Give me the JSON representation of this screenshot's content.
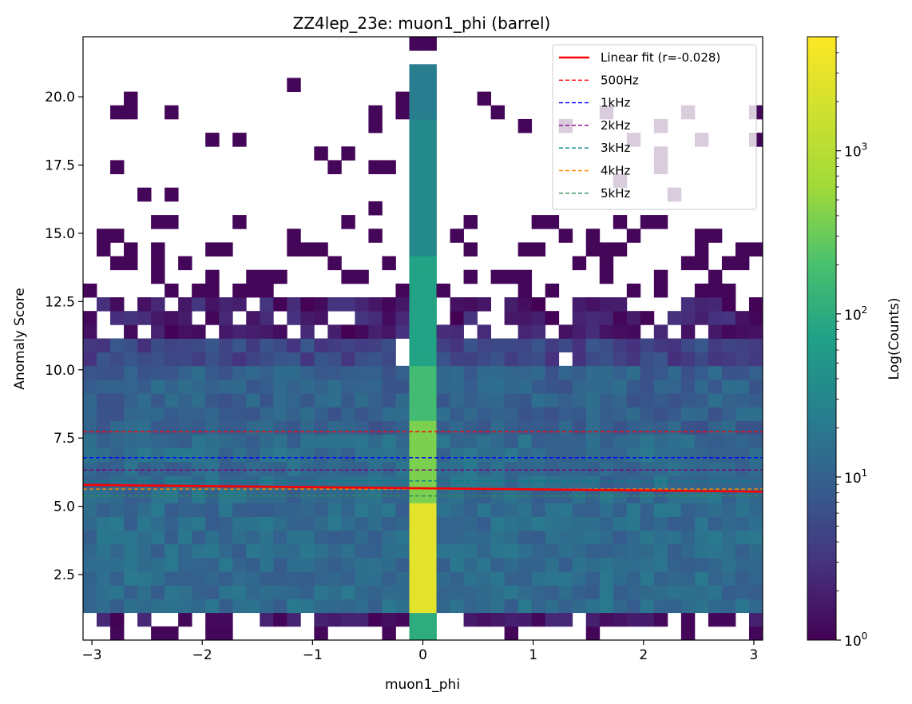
{
  "chart_data": {
    "type": "heatmap",
    "title": "ZZ4lep_23e: muon1_phi (barrel)",
    "xlabel": "muon1_phi",
    "ylabel": "Anomaly Score",
    "xlim": [
      -3.08,
      3.08
    ],
    "ylim": [
      0.1,
      22.2
    ],
    "xticks": [
      {
        "value": -3,
        "label": "−3"
      },
      {
        "value": -2,
        "label": "−2"
      },
      {
        "value": -1,
        "label": "−1"
      },
      {
        "value": 0,
        "label": "0"
      },
      {
        "value": 1,
        "label": "1"
      },
      {
        "value": 2,
        "label": "2"
      },
      {
        "value": 3,
        "label": "3"
      }
    ],
    "yticks": [
      {
        "value": 2.5,
        "label": "2.5"
      },
      {
        "value": 5.0,
        "label": "5.0"
      },
      {
        "value": 7.5,
        "label": "7.5"
      },
      {
        "value": 10.0,
        "label": "10.0"
      },
      {
        "value": 12.5,
        "label": "12.5"
      },
      {
        "value": 15.0,
        "label": "15.0"
      },
      {
        "value": 17.5,
        "label": "17.5"
      },
      {
        "value": 20.0,
        "label": "20.0"
      }
    ],
    "bins": {
      "nx": 50,
      "ny": 44
    },
    "colorbar": {
      "label": "Log(Counts)",
      "scale": "log",
      "range": [
        1,
        5000
      ],
      "ticks": [
        {
          "value": 1,
          "base": "10",
          "exp": "0"
        },
        {
          "value": 10,
          "base": "10",
          "exp": "1"
        },
        {
          "value": 100,
          "base": "10",
          "exp": "2"
        },
        {
          "value": 1000,
          "base": "10",
          "exp": "3"
        }
      ],
      "colormap": "viridis"
    },
    "fit": {
      "label": "Linear fit (r=-0.028)",
      "r": -0.028,
      "slope": -0.04,
      "intercept": 5.66,
      "color": "#ff0000"
    },
    "thresholds": [
      {
        "name": "500Hz",
        "y": 7.73,
        "color": "#ff0000"
      },
      {
        "name": "1kHz",
        "y": 6.78,
        "color": "#0000ff"
      },
      {
        "name": "2kHz",
        "y": 6.33,
        "color": "#800080"
      },
      {
        "name": "3kHz",
        "y": 5.93,
        "color": "#008080"
      },
      {
        "name": "4kHz",
        "y": 5.63,
        "color": "#ff8c00"
      },
      {
        "name": "5kHz",
        "y": 5.38,
        "color": "#2e8b57"
      }
    ],
    "legend": {
      "placement": "upper right"
    },
    "grid": false
  }
}
